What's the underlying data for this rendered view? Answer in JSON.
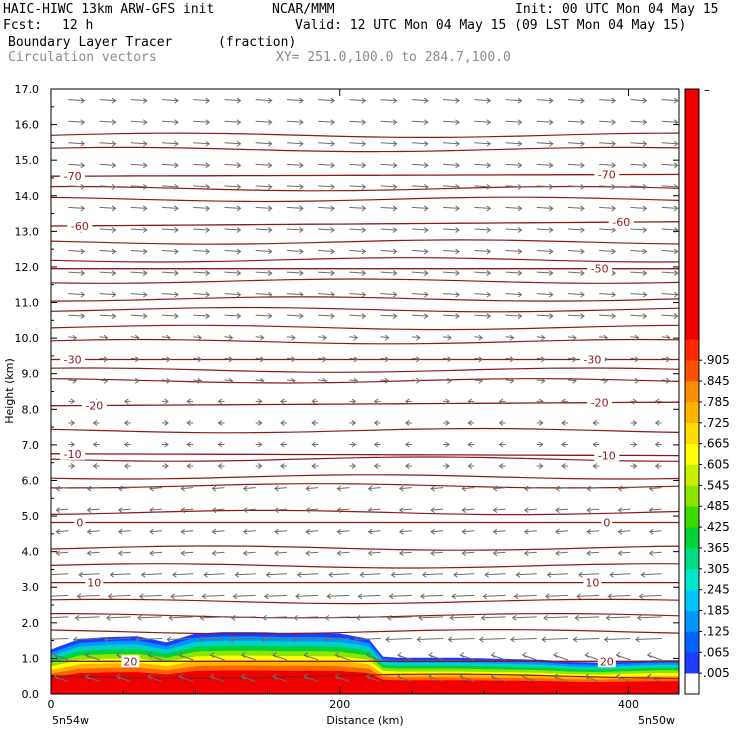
{
  "header": {
    "model": "HAIC-HIWC 13km ARW-GFS init",
    "org": "NCAR/MMM",
    "init": "Init: 00 UTC Mon 04 May 15",
    "fcst_label": "Fcst:",
    "fcst_value": "12 h",
    "valid": "Valid: 12 UTC Mon 04 May 15 (09 LST Mon 04 May 15)",
    "field_name": "Boundary Layer Tracer",
    "field_units": "(fraction)",
    "overlay_name": "Circulation vectors",
    "cross_section": "XY= 251.0,100.0 to 284.7,100.0"
  },
  "chart_data": {
    "type": "heatmap",
    "title": "Boundary Layer Tracer",
    "units": "(fraction)",
    "xlabel": "Distance (km)",
    "ylabel": "Height (km)",
    "xlim": [
      0,
      435
    ],
    "ylim": [
      0,
      17
    ],
    "x_ticks": [
      0,
      200,
      400
    ],
    "y_ticks": [
      0.0,
      1.0,
      2.0,
      3.0,
      4.0,
      5.0,
      6.0,
      7.0,
      8.0,
      9.0,
      10.0,
      11.0,
      12.0,
      13.0,
      14.0,
      15.0,
      16.0,
      17.0
    ],
    "endpoint_labels": {
      "left": "5n54w",
      "right": "5n50w"
    },
    "colorbar": {
      "levels": [
        ".005",
        ".065",
        ".125",
        ".185",
        ".245",
        ".305",
        ".365",
        ".425",
        ".485",
        ".545",
        ".605",
        ".665",
        ".725",
        ".785",
        ".845",
        ".905"
      ],
      "top_label": "–",
      "colors": [
        "#ffffff",
        "#1e3cff",
        "#0064ff",
        "#0096ff",
        "#00c8ff",
        "#00e6c8",
        "#00dc82",
        "#00d23c",
        "#3cdc00",
        "#8ce600",
        "#c8f000",
        "#ffff00",
        "#ffdc00",
        "#ffb400",
        "#ff8c00",
        "#ff5000",
        "#ff2800",
        "#f00000",
        "#f00000",
        "#f00000",
        "#f00000",
        "#f00000",
        "#f00000",
        "#f00000",
        "#f00000",
        "#f00000",
        "#f00000",
        "#f00000",
        "#f00000"
      ]
    },
    "boundary_layer_top_km": {
      "x": [
        0,
        20,
        40,
        60,
        80,
        100,
        120,
        140,
        160,
        180,
        200,
        220,
        230,
        240,
        260,
        280,
        300,
        320,
        340,
        360,
        380,
        400,
        420,
        435
      ],
      "y": [
        1.25,
        1.55,
        1.6,
        1.62,
        1.45,
        1.7,
        1.74,
        1.74,
        1.72,
        1.72,
        1.7,
        1.55,
        1.05,
        1.02,
        1.02,
        1.02,
        1.0,
        0.98,
        0.96,
        0.9,
        0.88,
        0.92,
        0.95,
        0.95
      ]
    },
    "temperature_contours": [
      {
        "label": "-70",
        "label_x": [
          15,
          385
        ],
        "height_km": [
          14.55,
          14.6
        ]
      },
      {
        "label": "-60",
        "label_x": [
          20,
          395
        ],
        "height_km": [
          13.15,
          13.27
        ]
      },
      {
        "label": "-50",
        "label_x": [
          380
        ],
        "height_km": [
          11.95,
          11.95
        ]
      },
      {
        "label": "-30",
        "label_x": [
          15,
          375
        ],
        "height_km": [
          9.4,
          9.4
        ]
      },
      {
        "label": "-20",
        "label_x": [
          30,
          380
        ],
        "height_km": [
          8.1,
          8.2
        ]
      },
      {
        "label": "-10",
        "label_x": [
          15,
          385
        ],
        "height_km": [
          6.75,
          6.7
        ]
      },
      {
        "label": "0",
        "label_x": [
          20,
          385
        ],
        "height_km": [
          4.82,
          4.82
        ]
      },
      {
        "label": "10",
        "label_x": [
          30,
          375
        ],
        "height_km": [
          3.13,
          3.13
        ]
      },
      {
        "label": "20",
        "label_x": [
          55,
          385
        ],
        "height_km": [
          0.92,
          0.92
        ]
      }
    ],
    "isentrope_heights_km": [
      15.7,
      15.3,
      14.2,
      13.9,
      12.7,
      12.2,
      11.6,
      11.1,
      10.8,
      10.3,
      9.9,
      9.1,
      8.8,
      7.4,
      6.6,
      6.1,
      5.85,
      5.1,
      4.1,
      3.6,
      2.6,
      2.2,
      1.75,
      0.5
    ]
  }
}
